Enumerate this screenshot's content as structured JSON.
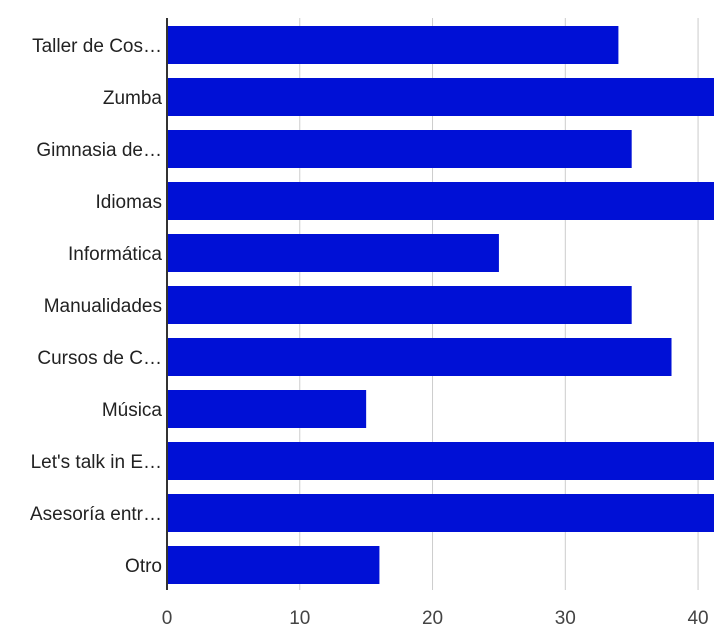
{
  "chart_data": {
    "type": "bar",
    "orientation": "horizontal",
    "categories": [
      "Taller de Cos…",
      "Zumba",
      "Gimnasia de…",
      "Idiomas",
      "Informática",
      "Manualidades",
      "Cursos de C…",
      "Música",
      "Let's talk in E…",
      "Asesoría entr…",
      "Otro"
    ],
    "values": [
      34,
      42,
      35,
      42,
      25,
      35,
      38,
      15,
      42,
      42,
      16
    ],
    "xlim": [
      0,
      41.2
    ],
    "x_ticks": [
      0,
      10,
      20,
      30,
      40
    ],
    "x_tick_labels": [
      "0",
      "10",
      "20",
      "30",
      "40"
    ],
    "grid": true,
    "bar_color": "#0010d6"
  }
}
